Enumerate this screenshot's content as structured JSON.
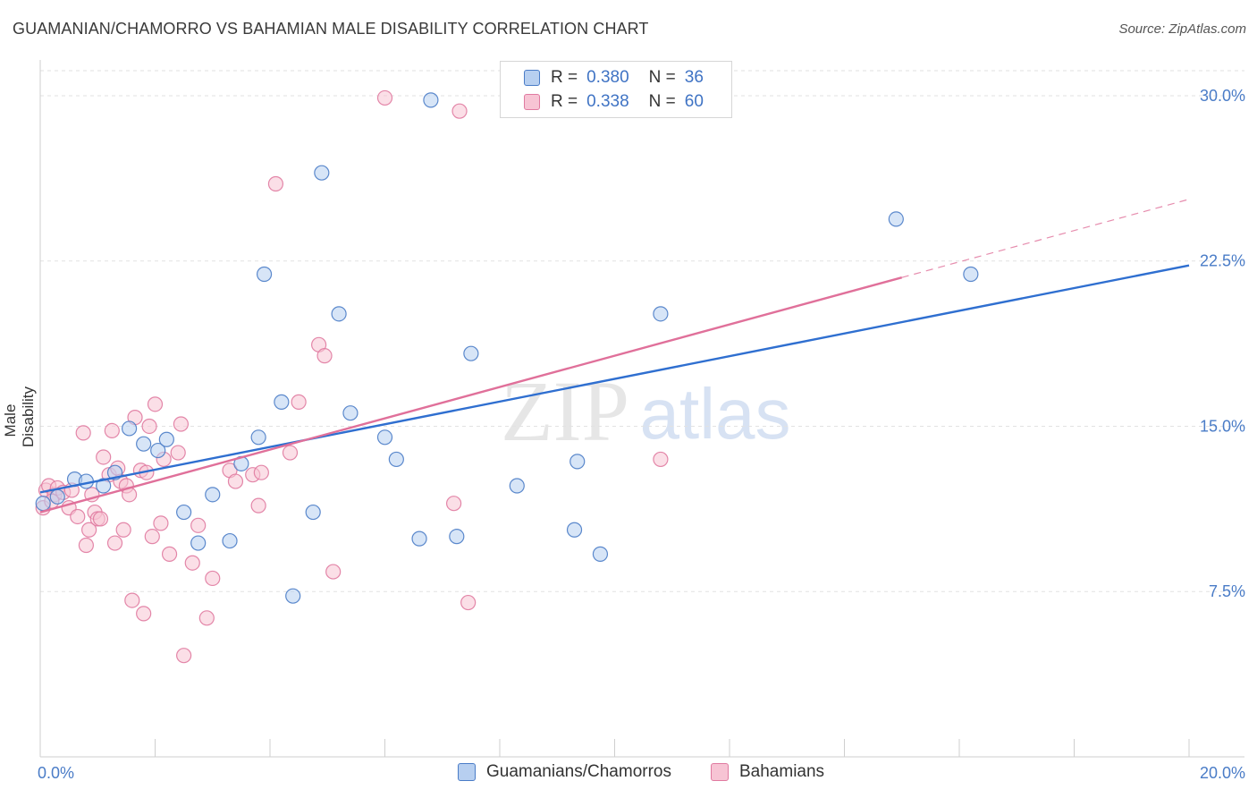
{
  "title": "GUAMANIAN/CHAMORRO VS BAHAMIAN MALE DISABILITY CORRELATION CHART",
  "source": "Source: ZipAtlas.com",
  "watermark": {
    "zip": "ZIP",
    "atlas": "atlas"
  },
  "colors": {
    "blue": "#4a7cc7",
    "blue_fill": "#b7cff0",
    "blue_line": "#2f6fd0",
    "pink": "#e07aa0",
    "pink_fill": "#f7c4d4",
    "pink_line": "#e0709a",
    "grid": "#e2e2e2"
  },
  "legend": {
    "series": [
      {
        "r_label": "R =",
        "r_value": "0.380",
        "n_label": "N =",
        "n_value": "36"
      },
      {
        "r_label": "R =",
        "r_value": "0.338",
        "n_label": "N =",
        "n_value": "60"
      }
    ]
  },
  "bottom_legend": {
    "items": [
      {
        "label": "Guamanians/Chamorros"
      },
      {
        "label": "Bahamians"
      }
    ]
  },
  "chart_data": {
    "type": "scatter",
    "title": "GUAMANIAN/CHAMORRO VS BAHAMIAN MALE DISABILITY CORRELATION CHART",
    "xlabel": "",
    "ylabel": "Male Disability",
    "xlim": [
      0,
      20
    ],
    "ylim": [
      0,
      31.5
    ],
    "x_tick_labels": [
      {
        "value": 0,
        "label": "0.0%"
      },
      {
        "value": 20,
        "label": "20.0%"
      }
    ],
    "y_tick_labels": [
      {
        "value": 7.5,
        "label": "7.5%"
      },
      {
        "value": 15,
        "label": "15.0%"
      },
      {
        "value": 22.5,
        "label": "22.5%"
      },
      {
        "value": 30,
        "label": "30.0%"
      }
    ],
    "x_minor_ticks": [
      0,
      2,
      4,
      6,
      8,
      10,
      12,
      14,
      16,
      18,
      20
    ],
    "grid": true,
    "legend_position": "top-center",
    "series": [
      {
        "name": "Guamanians/Chamorros",
        "color": "#4a7cc7",
        "r": 0.38,
        "n": 36,
        "trend": {
          "x0": 0,
          "y0": 12.0,
          "x1": 20,
          "y1": 22.3,
          "solid_until": 20
        },
        "points": [
          [
            0.05,
            11.5
          ],
          [
            0.3,
            11.8
          ],
          [
            0.6,
            12.6
          ],
          [
            0.8,
            12.5
          ],
          [
            1.1,
            12.3
          ],
          [
            1.3,
            12.9
          ],
          [
            1.55,
            14.9
          ],
          [
            1.8,
            14.2
          ],
          [
            2.05,
            13.9
          ],
          [
            2.2,
            14.4
          ],
          [
            2.5,
            11.1
          ],
          [
            2.75,
            9.7
          ],
          [
            3.0,
            11.9
          ],
          [
            3.3,
            9.8
          ],
          [
            3.5,
            13.3
          ],
          [
            3.8,
            14.5
          ],
          [
            3.9,
            21.9
          ],
          [
            4.2,
            16.1
          ],
          [
            4.4,
            7.3
          ],
          [
            4.75,
            11.1
          ],
          [
            4.9,
            26.5
          ],
          [
            5.2,
            20.1
          ],
          [
            5.4,
            15.6
          ],
          [
            6.0,
            14.5
          ],
          [
            6.2,
            13.5
          ],
          [
            6.6,
            9.9
          ],
          [
            6.8,
            29.8
          ],
          [
            7.25,
            10.0
          ],
          [
            7.5,
            18.3
          ],
          [
            8.3,
            12.3
          ],
          [
            9.3,
            10.3
          ],
          [
            9.35,
            13.4
          ],
          [
            9.75,
            9.2
          ],
          [
            10.8,
            20.1
          ],
          [
            14.9,
            24.4
          ],
          [
            16.2,
            21.9
          ]
        ]
      },
      {
        "name": "Bahamians",
        "color": "#e07aa0",
        "r": 0.338,
        "n": 60,
        "trend": {
          "x0": 0,
          "y0": 11.1,
          "x1": 20,
          "y1": 25.3,
          "solid_until": 15.0
        },
        "points": [
          [
            0.05,
            11.3
          ],
          [
            0.1,
            12.1
          ],
          [
            0.15,
            12.3
          ],
          [
            0.25,
            11.9
          ],
          [
            0.3,
            12.2
          ],
          [
            0.4,
            12.0
          ],
          [
            0.5,
            11.3
          ],
          [
            0.55,
            12.1
          ],
          [
            0.65,
            10.9
          ],
          [
            0.75,
            14.7
          ],
          [
            0.8,
            9.6
          ],
          [
            0.85,
            10.3
          ],
          [
            0.9,
            11.9
          ],
          [
            0.95,
            11.1
          ],
          [
            1.0,
            10.8
          ],
          [
            1.05,
            10.8
          ],
          [
            1.1,
            13.6
          ],
          [
            1.2,
            12.8
          ],
          [
            1.25,
            14.8
          ],
          [
            1.3,
            9.7
          ],
          [
            1.35,
            13.1
          ],
          [
            1.4,
            12.5
          ],
          [
            1.45,
            10.3
          ],
          [
            1.5,
            12.3
          ],
          [
            1.55,
            11.9
          ],
          [
            1.6,
            7.1
          ],
          [
            1.65,
            15.4
          ],
          [
            1.75,
            13.0
          ],
          [
            1.8,
            6.5
          ],
          [
            1.85,
            12.9
          ],
          [
            1.9,
            15.0
          ],
          [
            1.95,
            10.0
          ],
          [
            2.0,
            16.0
          ],
          [
            2.1,
            10.6
          ],
          [
            2.15,
            13.5
          ],
          [
            2.25,
            9.2
          ],
          [
            2.4,
            13.8
          ],
          [
            2.45,
            15.1
          ],
          [
            2.5,
            4.6
          ],
          [
            2.65,
            8.8
          ],
          [
            2.75,
            10.5
          ],
          [
            2.9,
            6.3
          ],
          [
            3.0,
            8.1
          ],
          [
            3.3,
            13.0
          ],
          [
            3.4,
            12.5
          ],
          [
            3.7,
            12.8
          ],
          [
            3.8,
            11.4
          ],
          [
            3.85,
            12.9
          ],
          [
            4.1,
            26.0
          ],
          [
            4.35,
            13.8
          ],
          [
            4.5,
            16.1
          ],
          [
            4.85,
            18.7
          ],
          [
            4.95,
            18.2
          ],
          [
            5.1,
            8.4
          ],
          [
            6.0,
            29.9
          ],
          [
            7.2,
            11.5
          ],
          [
            7.3,
            29.3
          ],
          [
            7.45,
            7.0
          ],
          [
            10.8,
            13.5
          ],
          [
            0.2,
            11.6
          ]
        ]
      }
    ]
  }
}
